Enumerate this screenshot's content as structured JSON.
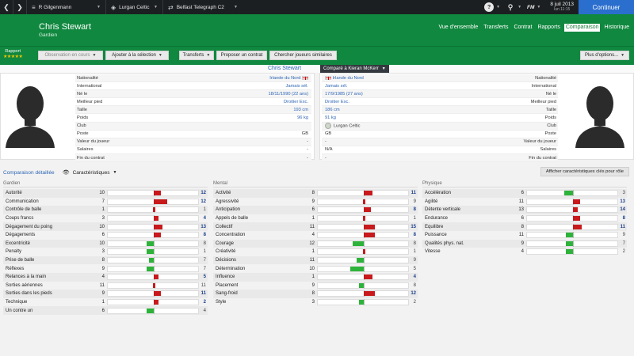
{
  "topbar": {
    "manager": "R Gilgenmann",
    "club": "Lurgan Celtic",
    "competition": "Belfast Telegraph C2",
    "date": "8 juil 2013",
    "time": "lun 11:15",
    "continue_label": "Continuer",
    "fm_label": "FM"
  },
  "header": {
    "player_name": "Chris Stewart",
    "player_position": "Gardien",
    "tabs": [
      "Vue d'ensemble",
      "Transferts",
      "Contrat",
      "Rapports",
      "Comparaison",
      "Historique"
    ],
    "active_tab": "Comparaison"
  },
  "toolbar": {
    "rating_label": "Rapport",
    "rating_stars": "★★★★★",
    "watch_label": "Observation en cours",
    "add_selection_label": "Ajouter à la sélection",
    "transfers_label": "Transferts",
    "offer_contract_label": "Proposer un contrat",
    "search_similar_label": "Chercher joueurs similaires",
    "more_options_label": "Plus d'options..."
  },
  "compare": {
    "left_name": "Chris Stewart",
    "compare_label": "Comparé à Kieran McKerr"
  },
  "info_labels": [
    "Nationalité",
    "International",
    "Né le",
    "Meilleur pied",
    "Taille",
    "Poids",
    "Club",
    "Poste",
    "Valeur du joueur",
    "Salaires",
    "Fin du contrat"
  ],
  "left_info": [
    "Irlande du Nord",
    "Jamais sél.",
    "18/11/1990 (22 ans)",
    "Droitier Exc.",
    "193 cm",
    "96 kg",
    "",
    "GB",
    "-",
    "-",
    "-"
  ],
  "right_info": [
    "Irlande du Nord",
    "Jamais sél.",
    "17/9/1985 (27 ans)",
    "Droitier Exc.",
    "186 cm",
    "91 kg",
    "Lurgan Celtic",
    "GB",
    "-",
    "N/A",
    "-"
  ],
  "detail": {
    "link_label": "Comparaison détaillée",
    "select_label": "Caractéristiques",
    "key_attr_button": "Afficher caractéristiques clés pour rôle"
  },
  "groups": [
    {
      "title": "Gardien",
      "attrs": [
        {
          "name": "Autorité",
          "a": 10,
          "b": 12
        },
        {
          "name": "Communication",
          "a": 7,
          "b": 12
        },
        {
          "name": "Contrôle de balle",
          "a": 1,
          "b": 1
        },
        {
          "name": "Coups francs",
          "a": 3,
          "b": 4
        },
        {
          "name": "Dégagement du poing",
          "a": 10,
          "b": 13
        },
        {
          "name": "Dégagements",
          "a": 6,
          "b": 8
        },
        {
          "name": "Excentricité",
          "a": 10,
          "b": 8
        },
        {
          "name": "Penalty",
          "a": 3,
          "b": 1
        },
        {
          "name": "Prise de balle",
          "a": 8,
          "b": 7
        },
        {
          "name": "Réflexes",
          "a": 9,
          "b": 7
        },
        {
          "name": "Relances à la main",
          "a": 4,
          "b": 5
        },
        {
          "name": "Sorties aériennes",
          "a": 11,
          "b": 11
        },
        {
          "name": "Sorties dans les pieds",
          "a": 9,
          "b": 11
        },
        {
          "name": "Technique",
          "a": 1,
          "b": 2
        },
        {
          "name": "Un contre un",
          "a": 6,
          "b": 4
        }
      ]
    },
    {
      "title": "Mental",
      "attrs": [
        {
          "name": "Activité",
          "a": 8,
          "b": 11
        },
        {
          "name": "Agressivité",
          "a": 9,
          "b": 9
        },
        {
          "name": "Anticipation",
          "a": 6,
          "b": 8
        },
        {
          "name": "Appels de balle",
          "a": 1,
          "b": 1
        },
        {
          "name": "Collectif",
          "a": 11,
          "b": 15
        },
        {
          "name": "Concentration",
          "a": 4,
          "b": 8
        },
        {
          "name": "Courage",
          "a": 12,
          "b": 8
        },
        {
          "name": "Créativité",
          "a": 1,
          "b": 1
        },
        {
          "name": "Décisions",
          "a": 11,
          "b": 9
        },
        {
          "name": "Détermination",
          "a": 10,
          "b": 5
        },
        {
          "name": "Influence",
          "a": 1,
          "b": 4
        },
        {
          "name": "Placement",
          "a": 9,
          "b": 8
        },
        {
          "name": "Sang-froid",
          "a": 8,
          "b": 12
        },
        {
          "name": "Style",
          "a": 3,
          "b": 2
        }
      ]
    },
    {
      "title": "Physique",
      "attrs": [
        {
          "name": "Accélération",
          "a": 6,
          "b": 3
        },
        {
          "name": "Agilité",
          "a": 11,
          "b": 13
        },
        {
          "name": "Détente verticale",
          "a": 13,
          "b": 14
        },
        {
          "name": "Endurance",
          "a": 6,
          "b": 8
        },
        {
          "name": "Equilibre",
          "a": 8,
          "b": 11
        },
        {
          "name": "Puissance",
          "a": 11,
          "b": 9
        },
        {
          "name": "Qualités phys. nat.",
          "a": 9,
          "b": 7
        },
        {
          "name": "Vitesse",
          "a": 4,
          "b": 2
        }
      ]
    }
  ],
  "colors": {
    "better": "#2db33a",
    "worse": "#c8191d",
    "header_green": "#10883f",
    "link_blue": "#2d66b5"
  }
}
